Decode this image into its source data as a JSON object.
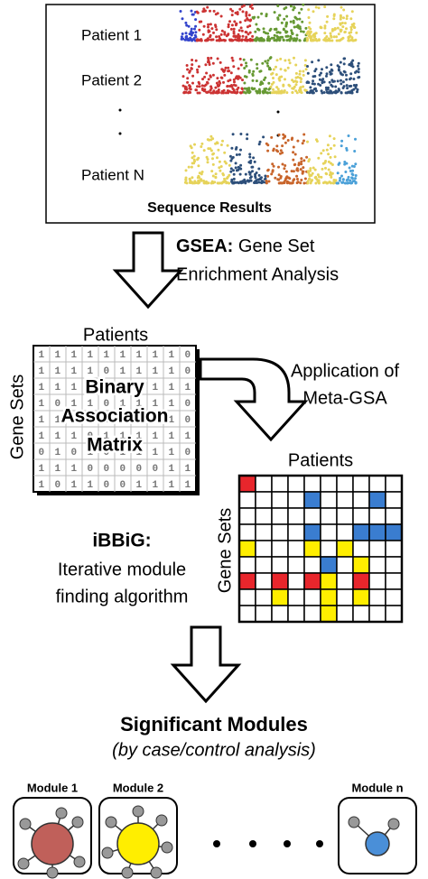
{
  "sequence_panel": {
    "patients": [
      "Patient 1",
      "Patient 2",
      "Patient N"
    ],
    "caption": "Sequence Results"
  },
  "gsea": {
    "label": "GSEA:",
    "lines": [
      "Gene Set",
      "Enrichment Analysis"
    ]
  },
  "binary_matrix": {
    "columns_label": "Patients",
    "rows_label": "Gene Sets",
    "title_lines": [
      "Binary",
      "Association",
      "Matrix"
    ],
    "rows": [
      "1111111110",
      "1111011110",
      "1110111111",
      "1011011110",
      "1111111110",
      "1110111111",
      "0101011110",
      "1110000011",
      "1011001111"
    ]
  },
  "meta_gsa": {
    "lines": [
      "Application of",
      "Meta-GSA"
    ]
  },
  "module_matrix": {
    "columns_label": "Patients",
    "rows_label": "Gene Sets"
  },
  "ibbig": {
    "label": "iBBiG:",
    "lines": [
      "Iterative module",
      "finding algorithm"
    ]
  },
  "results": {
    "title": "Significant Modules",
    "subtitle": "(by case/control analysis)",
    "modules": [
      "Module 1",
      "Module 2",
      "Module n"
    ]
  }
}
